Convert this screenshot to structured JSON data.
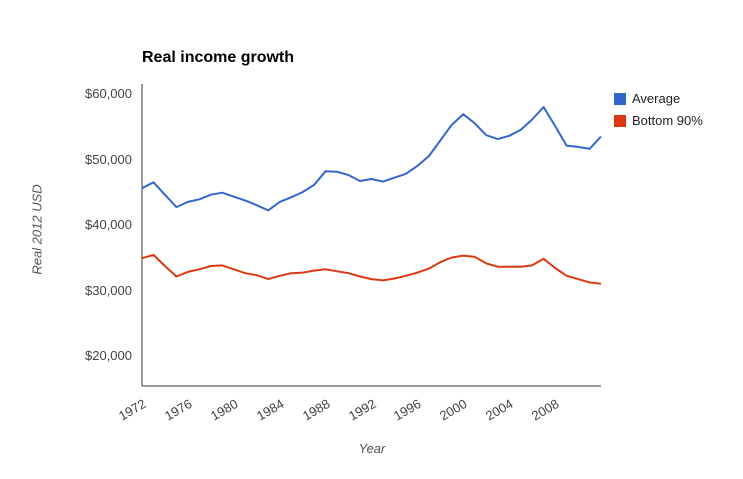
{
  "page": {
    "background_color": "#ffffff"
  },
  "chart_data": {
    "type": "line",
    "title": "Real income growth",
    "xlabel": "Year",
    "ylabel": "Real 2012 USD",
    "grid": "off",
    "legend_position": "right",
    "xlim": [
      1972,
      2012
    ],
    "ylim": [
      20000,
      60000
    ],
    "axis_color": "#333333",
    "x": [
      1972,
      1973,
      1974,
      1975,
      1976,
      1977,
      1978,
      1979,
      1980,
      1981,
      1982,
      1983,
      1984,
      1985,
      1986,
      1987,
      1988,
      1989,
      1990,
      1991,
      1992,
      1993,
      1994,
      1995,
      1996,
      1997,
      1998,
      1999,
      2000,
      2001,
      2002,
      2003,
      2004,
      2005,
      2006,
      2007,
      2008,
      2009,
      2010,
      2011,
      2012
    ],
    "series": [
      {
        "name": "Average",
        "color": "#3366CC",
        "values": [
          45500,
          46400,
          44500,
          42600,
          43400,
          43800,
          44500,
          44800,
          44200,
          43600,
          42900,
          42100,
          43400,
          44100,
          44900,
          46000,
          48100,
          48000,
          47500,
          46600,
          46900,
          46500,
          47100,
          47700,
          48900,
          50400,
          52800,
          55200,
          56800,
          55400,
          53600,
          53000,
          53500,
          54400,
          56000,
          57900,
          55000,
          52000,
          51800,
          51500,
          53400
        ]
      },
      {
        "name": "Bottom 90%",
        "color": "#DC3912",
        "values": [
          34800,
          35300,
          33600,
          32000,
          32700,
          33100,
          33600,
          33700,
          33100,
          32500,
          32200,
          31600,
          32100,
          32500,
          32600,
          32900,
          33100,
          32800,
          32500,
          32000,
          31600,
          31400,
          31700,
          32100,
          32600,
          33200,
          34200,
          34900,
          35200,
          35000,
          34000,
          33500,
          33500,
          33500,
          33700,
          34700,
          33300,
          32100,
          31600,
          31100,
          30900
        ]
      }
    ],
    "y_ticks": [
      {
        "value": 60000,
        "label": "$60,000"
      },
      {
        "value": 50000,
        "label": "$50,000"
      },
      {
        "value": 40000,
        "label": "$40,000"
      },
      {
        "value": 30000,
        "label": "$30,000"
      },
      {
        "value": 20000,
        "label": "$20,000"
      }
    ],
    "x_ticks": [
      {
        "value": 1972,
        "label": "1972"
      },
      {
        "value": 1976,
        "label": "1976"
      },
      {
        "value": 1980,
        "label": "1980"
      },
      {
        "value": 1984,
        "label": "1984"
      },
      {
        "value": 1988,
        "label": "1988"
      },
      {
        "value": 1992,
        "label": "1992"
      },
      {
        "value": 1996,
        "label": "1996"
      },
      {
        "value": 2000,
        "label": "2000"
      },
      {
        "value": 2004,
        "label": "2004"
      },
      {
        "value": 2008,
        "label": "2008"
      }
    ]
  }
}
